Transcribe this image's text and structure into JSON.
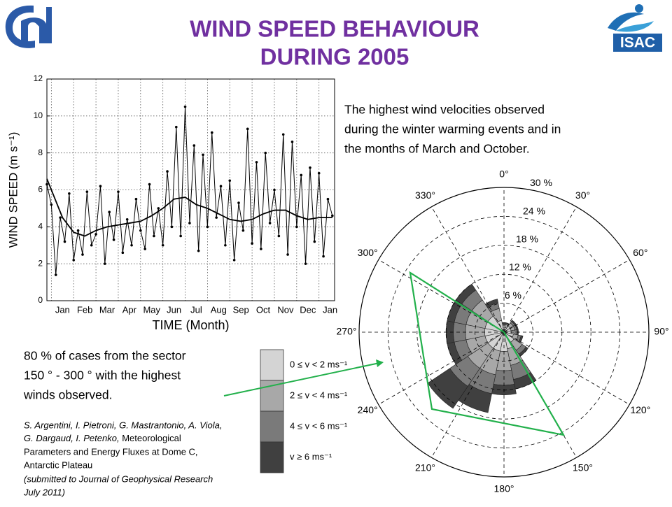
{
  "slide": {
    "title_lines": [
      "WIND SPEED BEHAVIOUR",
      "DURING 2005"
    ],
    "logo_text": "ISAC",
    "right_note": [
      "The highest wind velocities observed",
      "during the winter warming events and in",
      "the months of March and  October."
    ],
    "left_note": [
      "80 % of cases from the sector",
      "150 ° - 300 ° with the highest",
      "winds observed."
    ],
    "citation": {
      "authors1": "S. Argentini, I. Pietroni, G. Mastrantonio, A. Viola,",
      "authors2": "G. Dargaud, I. Petenko,",
      "title1": "Meteorological",
      "title2": "Parameters and Energy Fluxes at Dome C,",
      "title3": "Antarctic Plateau",
      "status1": "(submitted to Journal of Geophysical Research",
      "status2": "July 2011)"
    }
  },
  "chart_data": [
    {
      "type": "line",
      "x_label": "TIME (Month)",
      "y_label": "WIND SPEED (m s⁻¹)",
      "xlim": [
        -0.2,
        12.7
      ],
      "ylim": [
        0,
        12
      ],
      "yticks": [
        0,
        2,
        4,
        6,
        8,
        10,
        12
      ],
      "xticks": [
        {
          "value": 0.5,
          "label": "Jan"
        },
        {
          "value": 1.5,
          "label": "Feb"
        },
        {
          "value": 2.5,
          "label": "Mar"
        },
        {
          "value": 3.5,
          "label": "Apr"
        },
        {
          "value": 4.5,
          "label": "May"
        },
        {
          "value": 5.5,
          "label": "Jun"
        },
        {
          "value": 6.5,
          "label": "Jul"
        },
        {
          "value": 7.5,
          "label": "Aug"
        },
        {
          "value": 8.5,
          "label": "Sep"
        },
        {
          "value": 9.5,
          "label": "Oct"
        },
        {
          "value": 10.5,
          "label": "Nov"
        },
        {
          "value": 11.5,
          "label": "Dec"
        },
        {
          "value": 12.5,
          "label": "Jan"
        }
      ],
      "xgrid": [
        0,
        1,
        2,
        3,
        4,
        5,
        6,
        7,
        8,
        9,
        10,
        11,
        12
      ],
      "grid": true,
      "series": [
        {
          "color": "#000000",
          "markers": true,
          "x": [
            -0.2,
            0,
            0.2,
            0.4,
            0.6,
            0.8,
            1,
            1.2,
            1.4,
            1.6,
            1.8,
            2,
            2.2,
            2.4,
            2.6,
            2.8,
            3,
            3.2,
            3.4,
            3.6,
            3.8,
            4,
            4.2,
            4.4,
            4.6,
            4.8,
            5,
            5.2,
            5.4,
            5.6,
            5.8,
            6,
            6.2,
            6.4,
            6.6,
            6.8,
            7,
            7.2,
            7.4,
            7.6,
            7.8,
            8,
            8.2,
            8.4,
            8.6,
            8.8,
            9,
            9.2,
            9.4,
            9.6,
            9.8,
            10,
            10.2,
            10.4,
            10.6,
            10.8,
            11,
            11.2,
            11.4,
            11.6,
            11.8,
            12,
            12.2,
            12.4,
            12.6
          ],
          "values": [
            6.3,
            5.2,
            1.4,
            4.5,
            3.2,
            5.8,
            2.2,
            3.8,
            2.5,
            5.9,
            3.0,
            3.6,
            6.2,
            2.0,
            4.8,
            3.3,
            5.9,
            2.6,
            4.4,
            3.0,
            5.5,
            3.8,
            2.8,
            6.3,
            3.5,
            5.0,
            3.0,
            7.0,
            4.0,
            9.4,
            3.5,
            10.5,
            4.2,
            8.4,
            2.7,
            7.9,
            4.0,
            9.1,
            4.5,
            6.2,
            3.0,
            6.5,
            2.2,
            5.3,
            3.8,
            9.3,
            3.1,
            7.5,
            2.8,
            8.0,
            4.2,
            6.0,
            3.5,
            9.0,
            2.5,
            8.6,
            4.0,
            6.8,
            2.0,
            7.2,
            3.2,
            6.9,
            2.4,
            5.5,
            4.6
          ]
        },
        {
          "color": "#000000",
          "markers": false,
          "x": [
            -0.2,
            0.5,
            1,
            1.5,
            2,
            2.5,
            3,
            3.5,
            4,
            4.5,
            5,
            5.5,
            6,
            6.5,
            7,
            7.5,
            8,
            8.5,
            9,
            9.5,
            10,
            10.5,
            11,
            11.5,
            12,
            12.6
          ],
          "values": [
            6.6,
            4.5,
            3.7,
            3.5,
            3.8,
            4.0,
            4.1,
            4.2,
            4.3,
            4.6,
            5.0,
            5.5,
            5.6,
            5.2,
            5.0,
            4.7,
            4.4,
            4.3,
            4.4,
            4.7,
            4.9,
            4.9,
            4.6,
            4.4,
            4.5,
            4.5
          ]
        }
      ]
    },
    {
      "type": "windrose",
      "theta": [
        0,
        22.5,
        45,
        67.5,
        90,
        112.5,
        135,
        157.5,
        180,
        202.5,
        225,
        247.5,
        270,
        292.5,
        315,
        337.5
      ],
      "rlim": [
        0,
        30
      ],
      "rticks": [
        {
          "value": 6,
          "label": "6 %"
        },
        {
          "value": 12,
          "label": "12 %"
        },
        {
          "value": 18,
          "label": "18 %"
        },
        {
          "value": 24,
          "label": "24 %"
        },
        {
          "value": 30,
          "label": "30 %"
        }
      ],
      "theta_ticks": [
        {
          "value": 0,
          "label": "0°"
        },
        {
          "value": 30,
          "label": "30°"
        },
        {
          "value": 60,
          "label": "60°"
        },
        {
          "value": 90,
          "label": "90°"
        },
        {
          "value": 120,
          "label": "120°"
        },
        {
          "value": 150,
          "label": "150°"
        },
        {
          "value": 180,
          "label": "180°"
        },
        {
          "value": 210,
          "label": "210°"
        },
        {
          "value": 240,
          "label": "240°"
        },
        {
          "value": 270,
          "label": "270°"
        },
        {
          "value": 300,
          "label": "300°"
        },
        {
          "value": 330,
          "label": "330°"
        }
      ],
      "series": [
        {
          "name": "0 ≤ v < 2 ms⁻¹",
          "color": "#d4d4d4",
          "values": [
            1,
            1,
            1.5,
            1.5,
            1.5,
            2,
            2.5,
            3.5,
            4,
            4,
            4,
            4,
            4,
            4,
            4,
            2.5
          ]
        },
        {
          "name": "2 ≤ v < 4 ms⁻¹",
          "color": "#a8a8a8",
          "values": [
            0.6,
            0.6,
            0.8,
            0.8,
            0.8,
            1,
            2,
            3.5,
            4,
            5,
            5,
            4,
            4,
            4,
            4,
            2.5
          ]
        },
        {
          "name": "4 ≤ v < 6 ms⁻¹",
          "color": "#7a7a7a",
          "values": [
            0.3,
            0.3,
            0.4,
            0.4,
            0.4,
            0.6,
            1,
            3,
            3,
            4,
            4.5,
            2.5,
            2.5,
            2.5,
            2.5,
            1.2
          ]
        },
        {
          "name": "v ≥ 6 ms⁻¹",
          "color": "#404040",
          "values": [
            0.1,
            0.1,
            0.3,
            0.3,
            0.3,
            0.4,
            0.5,
            2,
            2,
            4,
            5.5,
            1.5,
            1.5,
            1.5,
            1.5,
            0.8
          ]
        }
      ]
    }
  ]
}
